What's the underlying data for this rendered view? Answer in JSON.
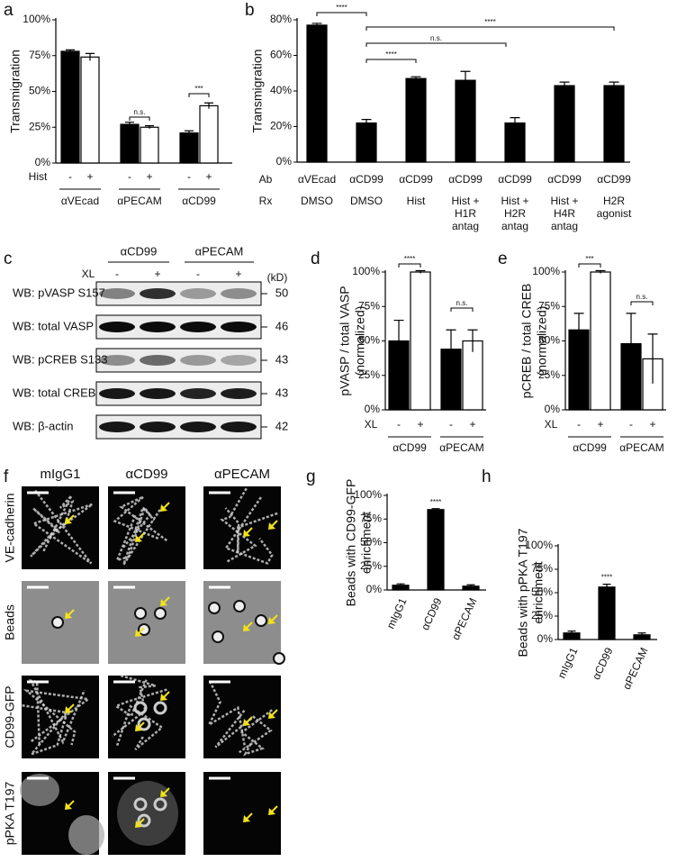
{
  "chart_data": [
    {
      "type": "bar",
      "label": "a",
      "ylabel": [
        "Transmigration"
      ],
      "row_label": "Hist",
      "categories": [
        "αVEcad",
        "αPECAM",
        "αCD99"
      ],
      "series": [
        {
          "name": "-",
          "color": "#000000",
          "values": [
            78,
            27,
            21
          ],
          "errors": [
            1,
            1.5,
            1.5
          ]
        },
        {
          "name": "+",
          "color": "#ffffff",
          "values": [
            74,
            25,
            40
          ],
          "errors": [
            2.5,
            1,
            2
          ]
        }
      ],
      "ylim": [
        0,
        100
      ],
      "yticks": [
        {
          "value": 0,
          "label": "0%"
        },
        {
          "value": 25,
          "label": "25%"
        },
        {
          "value": 50,
          "label": "50%"
        },
        {
          "value": 75,
          "label": "75%"
        },
        {
          "value": 100,
          "label": "100%"
        }
      ],
      "annotations": [
        "n.s.",
        "***"
      ]
    },
    {
      "type": "bar",
      "label": "b",
      "ylabel": [
        "Transmigration"
      ],
      "row_labels": [
        "Ab",
        "Rx"
      ],
      "categories": [
        "αVEcad",
        "αCD99",
        "αCD99",
        "αCD99",
        "αCD99",
        "αCD99",
        "αCD99"
      ],
      "rx": [
        [
          "DMSO"
        ],
        [
          "DMSO"
        ],
        [
          "Hist"
        ],
        [
          "Hist +",
          "H1R",
          "antag"
        ],
        [
          "Hist +",
          "H2R",
          "antag"
        ],
        [
          "Hist +",
          "H4R",
          "antag"
        ],
        [
          "H2R",
          "agonist"
        ]
      ],
      "values": [
        77,
        22,
        47,
        46,
        22,
        43,
        43
      ],
      "errors": [
        1,
        2,
        1,
        5,
        3,
        2,
        2
      ],
      "color": "#000000",
      "ylim": [
        0,
        80
      ],
      "yticks": [
        {
          "value": 0,
          "label": "0%"
        },
        {
          "value": 20,
          "label": "20%"
        },
        {
          "value": 40,
          "label": "40%"
        },
        {
          "value": 60,
          "label": "60%"
        },
        {
          "value": 80,
          "label": "80%"
        }
      ],
      "annotations": [
        "****",
        "****",
        "n.s.",
        "****"
      ]
    },
    {
      "type": "bar",
      "label": "d",
      "ylabel": [
        "pVASP / total VASP",
        "(normalized)"
      ],
      "row_label": "XL",
      "categories": [
        "αCD99",
        "αPECAM"
      ],
      "series": [
        {
          "name": "-",
          "color": "#000000",
          "values": [
            50,
            44
          ],
          "errors": [
            15,
            14
          ]
        },
        {
          "name": "+",
          "color": "#ffffff",
          "values": [
            100,
            50
          ],
          "errors": [
            1,
            8
          ]
        }
      ],
      "ylim": [
        0,
        100
      ],
      "yticks": [
        {
          "value": 0,
          "label": "0%"
        },
        {
          "value": 25,
          "label": "25%"
        },
        {
          "value": 50,
          "label": "50%"
        },
        {
          "value": 75,
          "label": "75%"
        },
        {
          "value": 100,
          "label": "100%"
        }
      ],
      "annotations": [
        "****",
        "n.s."
      ]
    },
    {
      "type": "bar",
      "label": "e",
      "ylabel": [
        "pCREB / total CREB",
        "(normalized)"
      ],
      "row_label": "XL",
      "categories": [
        "αCD99",
        "αPECAM"
      ],
      "series": [
        {
          "name": "-",
          "color": "#000000",
          "values": [
            58,
            48
          ],
          "errors": [
            12,
            22
          ]
        },
        {
          "name": "+",
          "color": "#ffffff",
          "values": [
            100,
            37
          ],
          "errors": [
            1,
            18
          ]
        }
      ],
      "ylim": [
        0,
        100
      ],
      "yticks": [
        {
          "value": 0,
          "label": "0%"
        },
        {
          "value": 25,
          "label": "25%"
        },
        {
          "value": 50,
          "label": "50%"
        },
        {
          "value": 75,
          "label": "75%"
        },
        {
          "value": 100,
          "label": "100%"
        }
      ],
      "annotations": [
        "***",
        "n.s."
      ]
    },
    {
      "type": "bar",
      "label": "g",
      "ylabel": [
        "Beads with CD99-GFP",
        "enrichment"
      ],
      "categories": [
        "mIgG1",
        "αCD99",
        "αPECAM"
      ],
      "values": [
        5,
        85,
        4
      ],
      "errors": [
        1.5,
        1,
        1.5
      ],
      "color": "#000000",
      "ylim": [
        0,
        100
      ],
      "yticks": [
        {
          "value": 0,
          "label": "0%"
        },
        {
          "value": 25,
          "label": "25%"
        },
        {
          "value": 50,
          "label": "50%"
        },
        {
          "value": 75,
          "label": "75%"
        },
        {
          "value": 100,
          "label": "100%"
        }
      ],
      "annotations": [
        "****"
      ]
    },
    {
      "type": "bar",
      "label": "h",
      "ylabel": [
        "Beads with pPKA T197",
        "enrichment"
      ],
      "categories": [
        "mIgG1",
        "αCD99",
        "αPECAM"
      ],
      "values": [
        7,
        56,
        5
      ],
      "errors": [
        2,
        3,
        2
      ],
      "color": "#000000",
      "ylim": [
        0,
        100
      ],
      "yticks": [
        {
          "value": 0,
          "label": "0%"
        },
        {
          "value": 25,
          "label": "25%"
        },
        {
          "value": 50,
          "label": "50%"
        },
        {
          "value": 75,
          "label": "75%"
        },
        {
          "value": 100,
          "label": "100%"
        }
      ],
      "annotations": [
        "****"
      ]
    }
  ],
  "blot": {
    "label": "c",
    "groups": [
      "αCD99",
      "αPECAM"
    ],
    "row_label": "XL",
    "lanes": [
      "-",
      "+",
      "-",
      "+"
    ],
    "unit": "(kD)",
    "rows": [
      {
        "name": "WB: pVASP S157",
        "kd": 50
      },
      {
        "name": "WB: total VASP",
        "kd": 46
      },
      {
        "name": "WB: pCREB S133",
        "kd": 43
      },
      {
        "name": "WB: total CREB",
        "kd": 43
      },
      {
        "name": "WB: β-actin",
        "kd": 42
      }
    ]
  },
  "images": {
    "label": "f",
    "columns": [
      "mIgG1",
      "αCD99",
      "αPECAM"
    ],
    "rows": [
      "VE-cadherin",
      "Beads",
      "CD99-GFP",
      "pPKA T197"
    ]
  }
}
